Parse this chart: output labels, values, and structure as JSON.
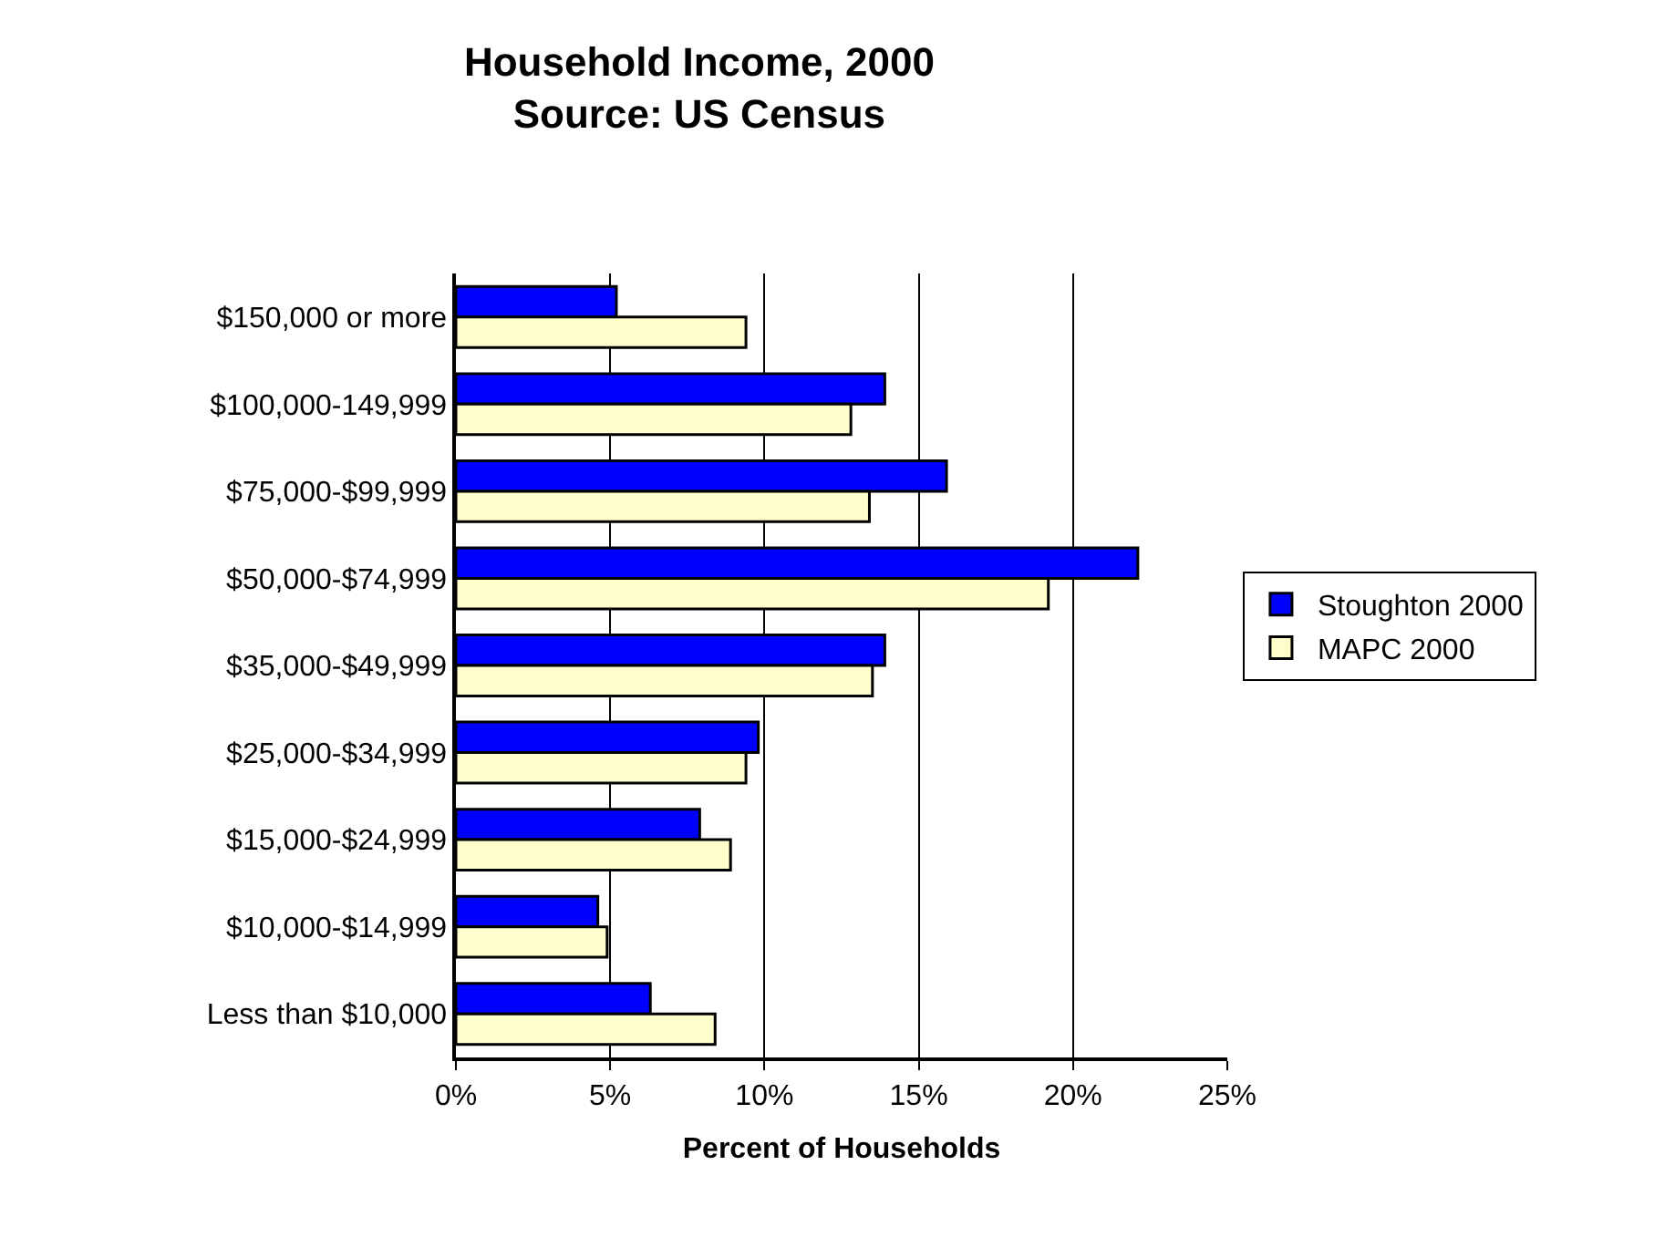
{
  "chart_data": {
    "type": "bar",
    "orientation": "horizontal",
    "title": "Household Income, 2000",
    "subtitle": "Source: US Census",
    "xlabel": "Percent of Households",
    "categories": [
      "$150,000 or more",
      "$100,000-149,999",
      "$75,000-$99,999",
      "$50,000-$74,999",
      "$35,000-$49,999",
      "$25,000-$34,999",
      "$15,000-$24,999",
      "$10,000-$14,999",
      "Less than $10,000"
    ],
    "series": [
      {
        "name": "Stoughton 2000",
        "color": "#0000ff",
        "values": [
          5.2,
          13.9,
          15.9,
          22.1,
          13.9,
          9.8,
          7.9,
          4.6,
          6.3
        ]
      },
      {
        "name": "MAPC 2000",
        "color": "#ffffcc",
        "values": [
          9.4,
          12.8,
          13.4,
          19.2,
          13.5,
          9.4,
          8.9,
          4.9,
          8.4
        ]
      }
    ],
    "xlim": [
      0,
      25
    ],
    "xticks": [
      {
        "value": 0,
        "label": "0%"
      },
      {
        "value": 5,
        "label": "5%"
      },
      {
        "value": 10,
        "label": "10%"
      },
      {
        "value": 15,
        "label": "15%"
      },
      {
        "value": 20,
        "label": "20%"
      },
      {
        "value": 25,
        "label": "25%"
      }
    ],
    "grid": "x",
    "legend": "right"
  }
}
